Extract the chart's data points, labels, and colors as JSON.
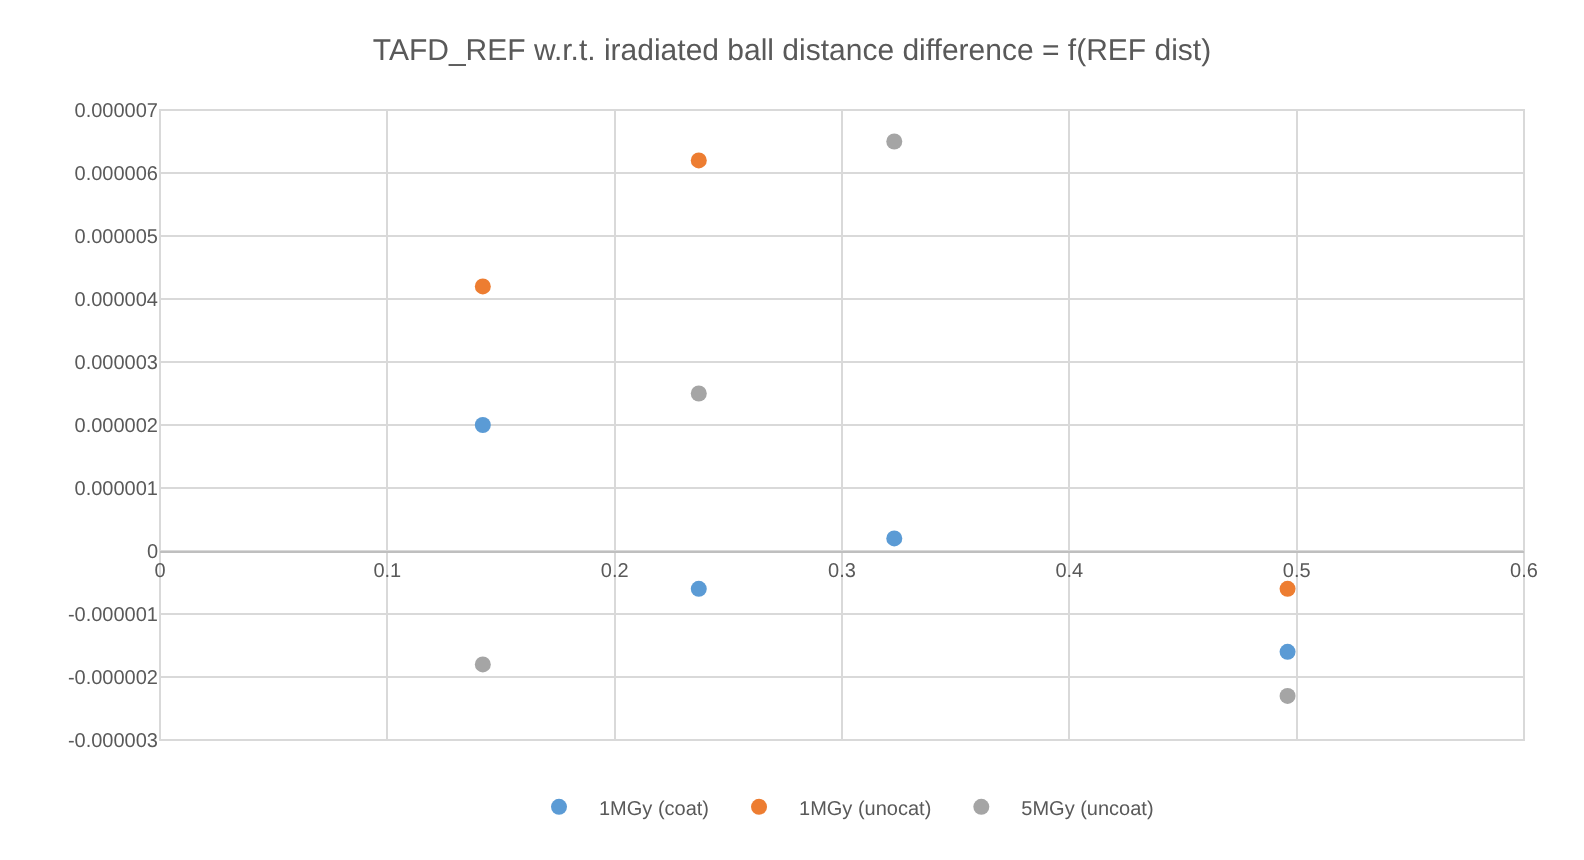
{
  "chart_data": {
    "type": "scatter",
    "title": "TAFD_REF w.r.t. iradiated ball distance difference = f(REF dist)",
    "series": [
      {
        "name": "1MGy (coat)",
        "color": "#5b9bd5",
        "x": [
          0.142,
          0.237,
          0.323,
          0.496
        ],
        "values": [
          2e-06,
          -6e-07,
          2e-07,
          -1.6e-06
        ]
      },
      {
        "name": "1MGy (unocat)",
        "color": "#ed7d31",
        "x": [
          0.142,
          0.237,
          0.496
        ],
        "values": [
          4.2e-06,
          6.2e-06,
          -6e-07
        ]
      },
      {
        "name": "5MGy (uncoat)",
        "color": "#a5a5a5",
        "x": [
          0.142,
          0.237,
          0.323,
          0.496
        ],
        "values": [
          -1.8e-06,
          2.5e-06,
          6.5e-06,
          -2.3e-06
        ]
      }
    ],
    "xlim": [
      0,
      0.6
    ],
    "xticks": [
      0,
      0.1,
      0.2,
      0.3,
      0.4,
      0.5,
      0.6
    ],
    "ylim": [
      -3e-06,
      7e-06
    ],
    "yticks": [
      {
        "value": -3e-06,
        "label": "-0.000003"
      },
      {
        "value": -2e-06,
        "label": "-0.000002"
      },
      {
        "value": -1e-06,
        "label": "-0.000001"
      },
      {
        "value": 0,
        "label": "0"
      },
      {
        "value": 1e-06,
        "label": "0.000001"
      },
      {
        "value": 2e-06,
        "label": "0.000002"
      },
      {
        "value": 3e-06,
        "label": "0.000003"
      },
      {
        "value": 4e-06,
        "label": "0.000004"
      },
      {
        "value": 5e-06,
        "label": "0.000005"
      },
      {
        "value": 6e-06,
        "label": "0.000006"
      },
      {
        "value": 7e-06,
        "label": "0.000007"
      }
    ],
    "grid": true,
    "legend": "bottom",
    "marker": "circle"
  }
}
